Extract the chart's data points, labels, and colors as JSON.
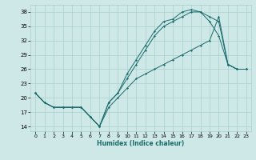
{
  "title": "",
  "xlabel": "Humidex (Indice chaleur)",
  "ylabel": "",
  "bg_color": "#cde8e6",
  "grid_color": "#aacfcd",
  "line_color": "#1a6b6b",
  "xlim": [
    -0.5,
    23.5
  ],
  "ylim": [
    13,
    39.5
  ],
  "yticks": [
    14,
    17,
    20,
    23,
    26,
    29,
    32,
    35,
    38
  ],
  "xticks": [
    0,
    1,
    2,
    3,
    4,
    5,
    6,
    7,
    8,
    9,
    10,
    11,
    12,
    13,
    14,
    15,
    16,
    17,
    18,
    19,
    20,
    21,
    22,
    23
  ],
  "line1_x": [
    0,
    1,
    2,
    3,
    4,
    5,
    6,
    7,
    8,
    9,
    10,
    11,
    12,
    13,
    14,
    15,
    16,
    17,
    18,
    19,
    20,
    21,
    22,
    23
  ],
  "line1_y": [
    21,
    19,
    18,
    18,
    18,
    18,
    16,
    14,
    19,
    21,
    25,
    28,
    31,
    34,
    36,
    36.5,
    38,
    38.5,
    38,
    37,
    36,
    27,
    26,
    26
  ],
  "line2_x": [
    0,
    1,
    2,
    3,
    4,
    5,
    6,
    7,
    8,
    9,
    10,
    11,
    12,
    13,
    14,
    15,
    16,
    17,
    18,
    19,
    20,
    21,
    22,
    23
  ],
  "line2_y": [
    21,
    19,
    18,
    18,
    18,
    18,
    16,
    14,
    19,
    21,
    24,
    27,
    30,
    33,
    35,
    36,
    37,
    38,
    38,
    36,
    33,
    27,
    26,
    26
  ],
  "line3_x": [
    0,
    1,
    2,
    3,
    4,
    5,
    6,
    7,
    8,
    9,
    10,
    11,
    12,
    13,
    14,
    15,
    16,
    17,
    18,
    19,
    20,
    21,
    22,
    23
  ],
  "line3_y": [
    21,
    19,
    18,
    18,
    18,
    18,
    16,
    14,
    18,
    20,
    22,
    24,
    25,
    26,
    27,
    28,
    29,
    30,
    31,
    32,
    37,
    27,
    26,
    26
  ]
}
